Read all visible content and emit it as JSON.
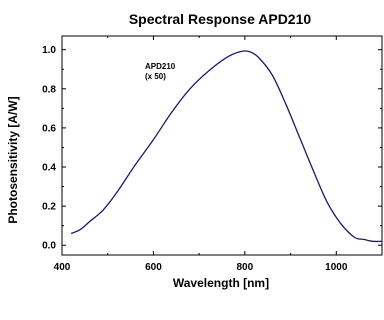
{
  "chart_data": {
    "type": "line",
    "title": "Spectral Response APD210",
    "xlabel": "Wavelength [nm]",
    "ylabel": "Photosensitivity [A/W]",
    "xlim": [
      400,
      1100
    ],
    "ylim": [
      -0.05,
      1.07
    ],
    "x_ticks": [
      400,
      600,
      800,
      1000
    ],
    "x_tick_labels": [
      "400",
      "600",
      "800",
      "1000"
    ],
    "y_ticks": [
      0.0,
      0.2,
      0.4,
      0.6,
      0.8,
      1.0
    ],
    "y_tick_labels": [
      "0.0",
      "0.2",
      "0.4",
      "0.6",
      "0.8",
      "1.0"
    ],
    "grid": false,
    "annotation": {
      "line1": "APD210",
      "line2": "(x 50)"
    },
    "series": [
      {
        "color": "#1a1a6e",
        "x": [
          420,
          440,
          460,
          490,
          520,
          560,
          600,
          640,
          680,
          720,
          760,
          790,
          810,
          830,
          860,
          890,
          920,
          950,
          980,
          1010,
          1040,
          1060,
          1080,
          1100
        ],
        "y": [
          0.06,
          0.08,
          0.12,
          0.18,
          0.27,
          0.41,
          0.54,
          0.68,
          0.8,
          0.89,
          0.96,
          0.99,
          0.99,
          0.96,
          0.87,
          0.72,
          0.55,
          0.38,
          0.22,
          0.11,
          0.04,
          0.03,
          0.02,
          0.02
        ]
      }
    ]
  }
}
